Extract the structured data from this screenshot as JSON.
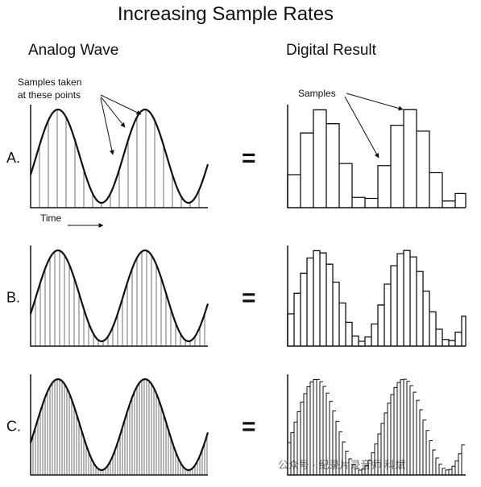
{
  "title": "Increasing Sample Rates",
  "headers": {
    "left": "Analog Wave",
    "right": "Digital Result"
  },
  "annotations": {
    "samples_taken_1": "Samples taken",
    "samples_taken_2": "at these points",
    "samples": "Samples",
    "time": "Time"
  },
  "rows": [
    {
      "label": "A.",
      "equals": "="
    },
    {
      "label": "B.",
      "equals": "="
    },
    {
      "label": "C.",
      "equals": "="
    }
  ],
  "watermark": "公众号 · 纪录片录音师 科斌"
}
